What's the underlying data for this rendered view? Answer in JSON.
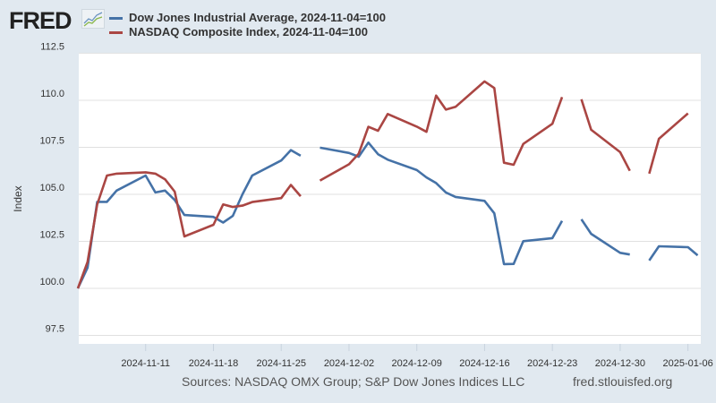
{
  "header": {
    "logo_text": "FRED",
    "logo_icon": "line-chart-icon"
  },
  "footer": {
    "sources": "Sources: NASDAQ OMX Group; S&P Dow Jones Indices LLC",
    "site": "fred.stlouisfed.org"
  },
  "chart_data": {
    "type": "line",
    "title": "",
    "xlabel": "",
    "ylabel": "Index",
    "ylim": [
      97.05,
      112.52
    ],
    "yticks": [
      "97.5",
      "100.0",
      "102.5",
      "105.0",
      "107.5",
      "110.0",
      "112.5"
    ],
    "xticks": [
      "2024-11-11",
      "2024-11-18",
      "2024-11-25",
      "2024-12-02",
      "2024-12-09",
      "2024-12-16",
      "2024-12-23",
      "2024-12-30",
      "2025-01-06"
    ],
    "xrange": [
      "2024-11-04",
      "2025-01-07"
    ],
    "grid": true,
    "legend_placement": "top-left",
    "x": [
      "2024-11-04",
      "2024-11-05",
      "2024-11-06",
      "2024-11-07",
      "2024-11-08",
      "2024-11-11",
      "2024-11-12",
      "2024-11-13",
      "2024-11-14",
      "2024-11-15",
      "2024-11-18",
      "2024-11-19",
      "2024-11-20",
      "2024-11-21",
      "2024-11-22",
      "2024-11-25",
      "2024-11-26",
      "2024-11-27",
      "2024-11-28",
      "2024-11-29",
      "2024-12-02",
      "2024-12-03",
      "2024-12-04",
      "2024-12-05",
      "2024-12-06",
      "2024-12-09",
      "2024-12-10",
      "2024-12-11",
      "2024-12-12",
      "2024-12-13",
      "2024-12-16",
      "2024-12-17",
      "2024-12-18",
      "2024-12-19",
      "2024-12-20",
      "2024-12-23",
      "2024-12-24",
      "2024-12-25",
      "2024-12-26",
      "2024-12-27",
      "2024-12-30",
      "2024-12-31",
      "2025-01-01",
      "2025-01-02",
      "2025-01-03",
      "2025-01-06",
      "2025-01-07"
    ],
    "series": [
      {
        "name": "Dow Jones Industrial Average, 2024-11-04=100",
        "color": "#4572a7",
        "values": [
          100,
          101.1,
          104.6,
          104.6,
          105.2,
          106.0,
          105.1,
          105.2,
          104.7,
          103.9,
          103.8,
          103.5,
          103.85,
          105.0,
          106.0,
          106.8,
          107.35,
          107.05,
          null,
          107.48,
          107.2,
          107.0,
          107.75,
          107.13,
          106.84,
          106.29,
          105.9,
          105.6,
          105.1,
          104.86,
          104.65,
          103.99,
          101.29,
          101.3,
          102.51,
          102.67,
          103.59,
          null,
          103.67,
          102.9,
          101.89,
          101.8,
          null,
          101.48,
          102.24,
          102.19,
          101.76
        ]
      },
      {
        "name": "NASDAQ Composite Index, 2024-11-04=100",
        "color": "#aa4643",
        "values": [
          100,
          101.4,
          104.46,
          106.0,
          106.1,
          106.17,
          106.1,
          105.8,
          105.14,
          102.76,
          103.38,
          104.46,
          104.33,
          104.4,
          104.59,
          104.8,
          105.5,
          104.9,
          null,
          105.73,
          106.6,
          107.16,
          108.59,
          108.38,
          109.27,
          108.6,
          108.32,
          110.25,
          109.5,
          109.65,
          111.0,
          110.65,
          106.68,
          106.57,
          107.68,
          108.75,
          110.17,
          null,
          110.05,
          108.43,
          107.24,
          106.25,
          null,
          106.1,
          107.95,
          109.3,
          null
        ]
      }
    ]
  }
}
